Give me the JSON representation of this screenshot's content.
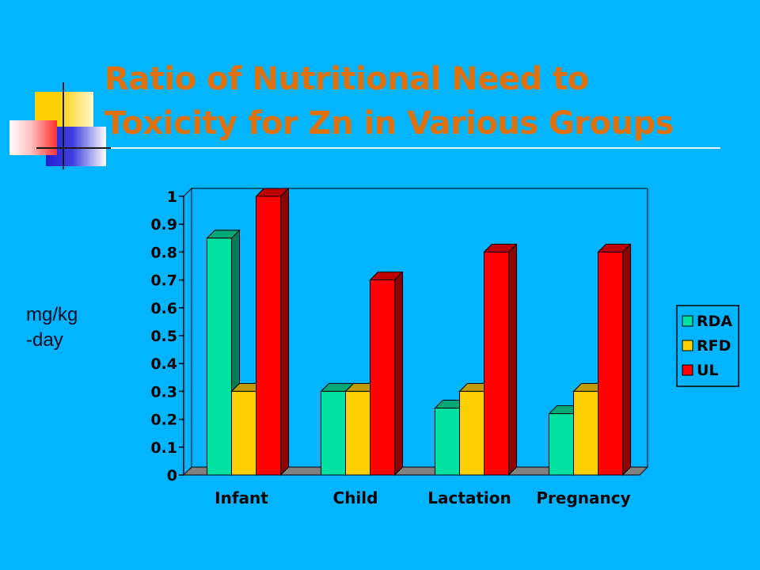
{
  "slide": {
    "title_line1": "Ratio of Nutritional Need to",
    "title_line2": "Toxicity for Zn in Various Groups",
    "ylabel_line1": "mg/kg",
    "ylabel_line2": "-day"
  },
  "chart_data": {
    "type": "bar",
    "style": "3d-clustered",
    "categories": [
      "Infant",
      "Child",
      "Lactation",
      "Pregnancy"
    ],
    "series": [
      {
        "name": "RDA",
        "values": [
          0.85,
          0.3,
          0.24,
          0.22
        ],
        "color": "#00E0A0"
      },
      {
        "name": "RFD",
        "values": [
          0.3,
          0.3,
          0.3,
          0.3
        ],
        "color": "#FFD000"
      },
      {
        "name": "UL",
        "values": [
          1.0,
          0.7,
          0.8,
          0.8
        ],
        "color": "#FF0000"
      }
    ],
    "ylim": [
      0,
      1
    ],
    "yticks": [
      "0",
      "0.1",
      "0.2",
      "0.3",
      "0.4",
      "0.5",
      "0.6",
      "0.7",
      "0.8",
      "0.9",
      "1"
    ],
    "ylabel": "mg/kg -day",
    "grid": false,
    "legend_position": "right",
    "colors": {
      "background": "#00B4FF",
      "plot_wall": "#00B4FF",
      "floor": "#808080",
      "title": "#E0700A"
    }
  }
}
